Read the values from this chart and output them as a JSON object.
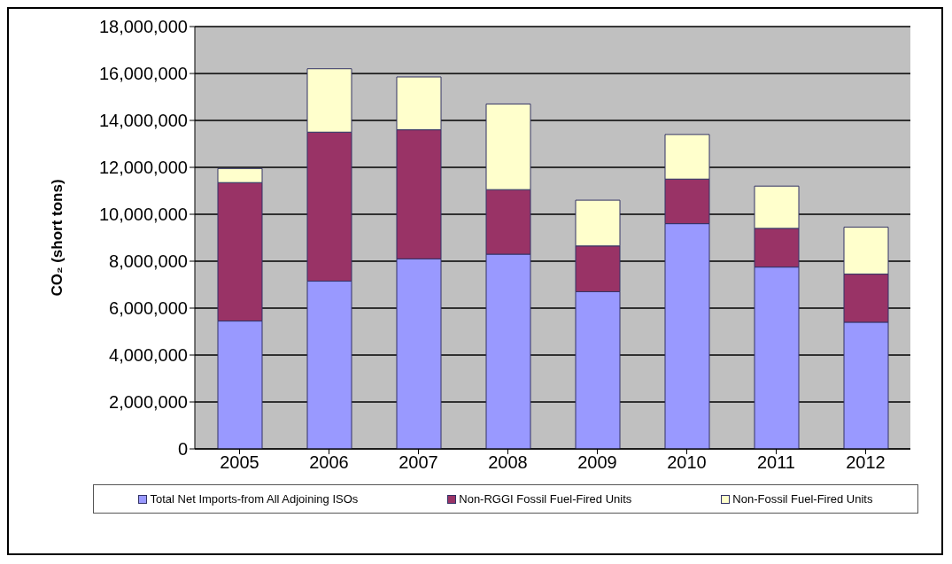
{
  "chart_data": {
    "type": "bar",
    "stacked": true,
    "ylabel": "CO₂ (short tons)",
    "categories": [
      "2005",
      "2006",
      "2007",
      "2008",
      "2009",
      "2010",
      "2011",
      "2012"
    ],
    "series": [
      {
        "name": "Total Net Imports-from All Adjoining ISOs",
        "color": "#9999ff",
        "values": [
          5450000,
          7150000,
          8100000,
          8300000,
          6700000,
          9600000,
          7750000,
          5400000
        ]
      },
      {
        "name": "Non-RGGI Fossil Fuel-Fired Units",
        "color": "#993366",
        "values": [
          5900000,
          6350000,
          5500000,
          2750000,
          1950000,
          1900000,
          1650000,
          2050000
        ]
      },
      {
        "name": "Non-Fossil Fuel-Fired Units",
        "color": "#ffffcc",
        "values": [
          600000,
          2700000,
          2250000,
          3650000,
          1950000,
          1900000,
          1800000,
          2000000
        ]
      }
    ],
    "ylim": [
      0,
      18000000
    ],
    "yticks": [
      0,
      {
        "value": 2000000,
        "label": "2,000,000"
      },
      {
        "value": 4000000,
        "label": "4,000,000"
      },
      {
        "value": 6000000,
        "label": "6,000,000"
      },
      {
        "value": 8000000,
        "label": "8,000,000"
      },
      {
        "value": 10000000,
        "label": "10,000,000"
      },
      {
        "value": 12000000,
        "label": "12,000,000"
      },
      {
        "value": 14000000,
        "label": "14,000,000"
      },
      {
        "value": 16000000,
        "label": "16,000,000"
      },
      {
        "value": 18000000,
        "label": "18,000,000"
      }
    ],
    "grid": "y",
    "legend": "bottom"
  }
}
